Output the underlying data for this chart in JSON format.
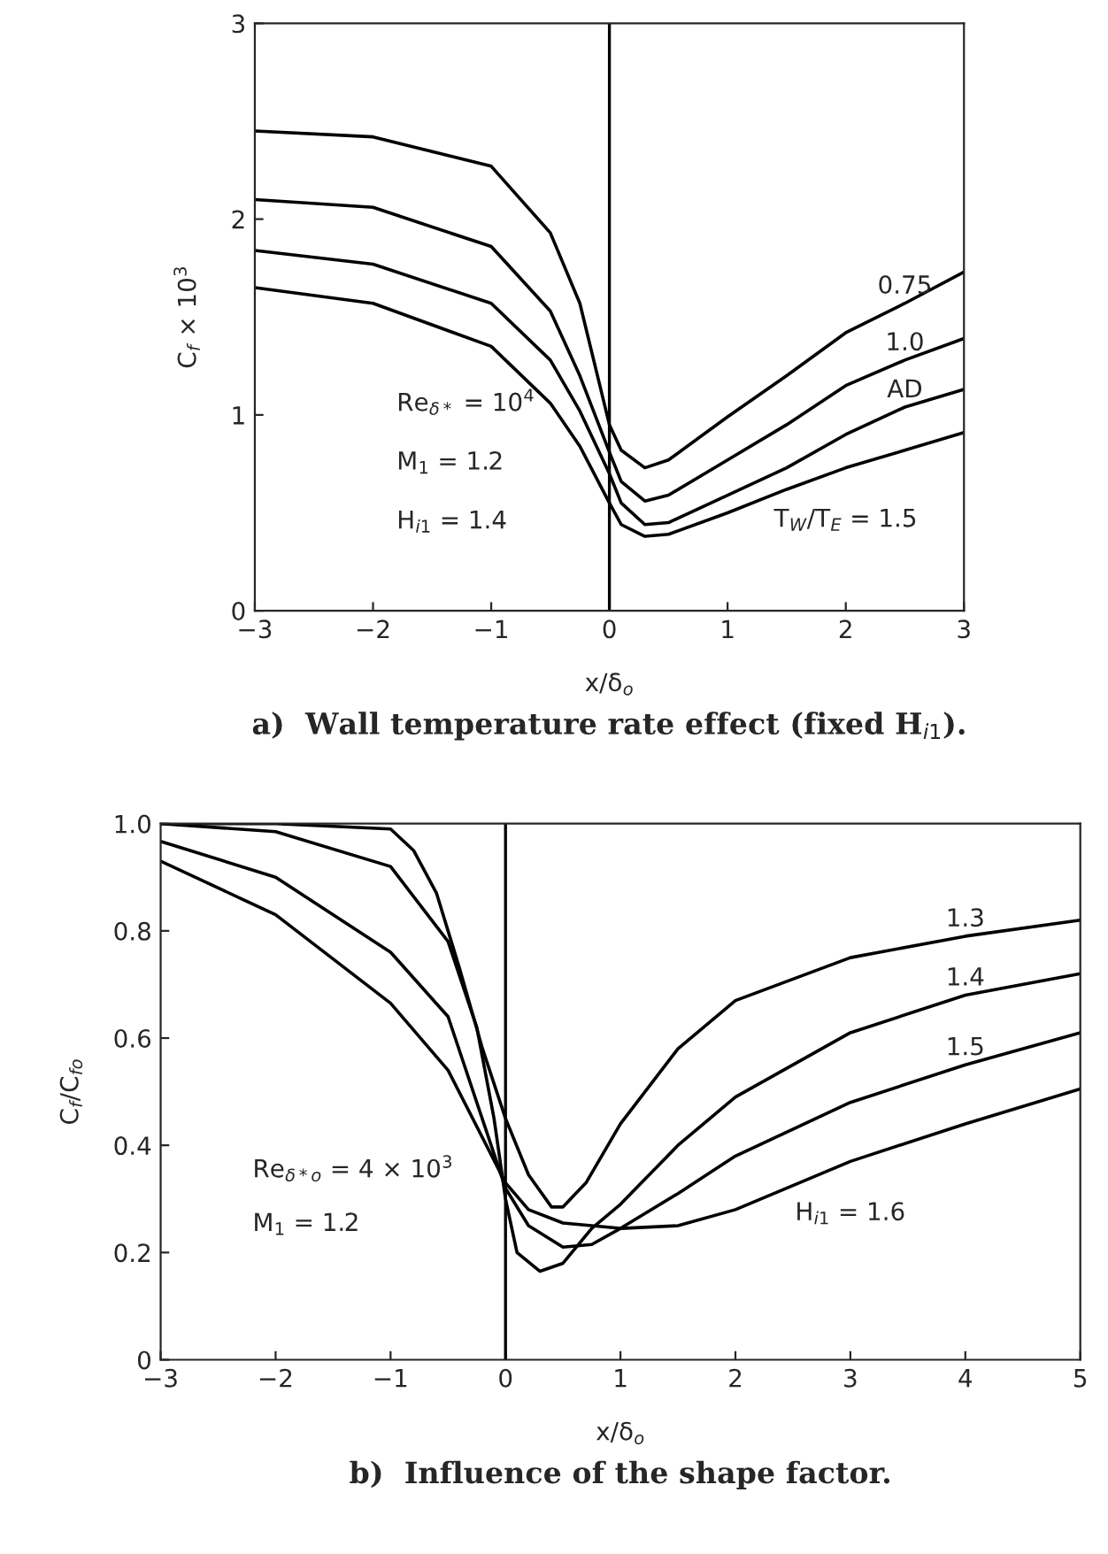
{
  "chart_data": [
    {
      "type": "line",
      "title": "a)  Wall temperature rate effect (fixed H$_{i1}$).",
      "xlabel": "x/δ$_{o}$",
      "ylabel": "C$_{f}$ × 10$^{3}$",
      "xlim": [
        -3,
        3
      ],
      "ylim": [
        0,
        3
      ],
      "xticks": [
        {
          "value": -3,
          "label": "−3"
        },
        {
          "value": -2,
          "label": "−2"
        },
        {
          "value": -1,
          "label": "−1"
        },
        0,
        1,
        2,
        3
      ],
      "yticks": [
        0,
        1,
        2,
        3
      ],
      "x": [
        -3,
        -2,
        -1,
        -0.5,
        -0.25,
        0,
        0.1,
        0.3,
        0.5,
        1,
        1.5,
        2,
        2.5,
        3
      ],
      "series": [
        {
          "name": "0.75",
          "color": "#000000",
          "values": [
            2.45,
            2.42,
            2.27,
            1.93,
            1.57,
            0.95,
            0.82,
            0.73,
            0.77,
            0.99,
            1.2,
            1.42,
            1.57,
            1.73
          ]
        },
        {
          "name": "1.0",
          "color": "#000000",
          "values": [
            2.1,
            2.06,
            1.86,
            1.53,
            1.2,
            0.81,
            0.66,
            0.56,
            0.59,
            0.77,
            0.95,
            1.15,
            1.28,
            1.39
          ]
        },
        {
          "name": "AD",
          "color": "#000000",
          "values": [
            1.84,
            1.77,
            1.57,
            1.28,
            1.02,
            0.7,
            0.55,
            0.44,
            0.45,
            0.59,
            0.73,
            0.9,
            1.04,
            1.13
          ]
        },
        {
          "name": "T$_{W}$/T$_{E}$ = 1.5",
          "color": "#000000",
          "values": [
            1.65,
            1.57,
            1.35,
            1.06,
            0.84,
            0.55,
            0.44,
            0.38,
            0.39,
            0.5,
            0.62,
            0.73,
            0.82,
            0.91
          ]
        }
      ],
      "ref_lines": [
        {
          "axis": "x",
          "value": 0,
          "color": "#000000"
        }
      ],
      "annotations": [
        "Re$_{δ*}$ = 10$^{4}$",
        "M$_{1}$ = 1.2",
        "H$_{i1}$ = 1.4"
      ]
    },
    {
      "type": "line",
      "title": "b)  Influence of the shape factor.",
      "xlabel": "x/δ$_{o}$",
      "ylabel": "C$_{f}$/C$_{fo}$",
      "xlim": [
        -3,
        5
      ],
      "ylim": [
        0,
        1.0
      ],
      "xticks": [
        {
          "value": -3,
          "label": "−3"
        },
        {
          "value": -2,
          "label": "−2"
        },
        {
          "value": -1,
          "label": "−1"
        },
        0,
        1,
        2,
        3,
        4,
        5
      ],
      "yticks": [
        0,
        {
          "value": 0.2,
          "label": "0.2"
        },
        {
          "value": 0.4,
          "label": "0.4"
        },
        {
          "value": 0.6,
          "label": "0.6"
        },
        {
          "value": 0.8,
          "label": "0.8"
        },
        {
          "value": 1.0,
          "label": "1.0"
        }
      ],
      "series": [
        {
          "name": "1.3",
          "color": "#000000",
          "x": [
            -3,
            -2,
            -1,
            -0.8,
            -0.6,
            -0.4,
            -0.2,
            0,
            0.2,
            0.4,
            0.5,
            0.7,
            1,
            1.5,
            2,
            3,
            4,
            5
          ],
          "values": [
            1.0,
            1.0,
            0.99,
            0.95,
            0.87,
            0.73,
            0.58,
            0.45,
            0.345,
            0.285,
            0.285,
            0.33,
            0.44,
            0.58,
            0.67,
            0.75,
            0.79,
            0.82
          ]
        },
        {
          "name": "1.4",
          "color": "#000000",
          "x": [
            -3,
            -2,
            -1,
            -0.5,
            -0.25,
            -0.1,
            0,
            0.1,
            0.3,
            0.5,
            0.75,
            1,
            1.5,
            2,
            3,
            4,
            5
          ],
          "values": [
            1.0,
            0.985,
            0.92,
            0.78,
            0.62,
            0.45,
            0.3,
            0.2,
            0.165,
            0.18,
            0.245,
            0.29,
            0.4,
            0.49,
            0.61,
            0.68,
            0.72
          ]
        },
        {
          "name": "1.5",
          "color": "#000000",
          "x": [
            -3,
            -2,
            -1,
            -0.5,
            0,
            0.2,
            0.5,
            0.75,
            1,
            1.5,
            2,
            3,
            4,
            5
          ],
          "values": [
            0.967,
            0.9,
            0.76,
            0.64,
            0.32,
            0.25,
            0.21,
            0.215,
            0.245,
            0.31,
            0.38,
            0.48,
            0.55,
            0.61
          ]
        },
        {
          "name": "H$_{i1}$ = 1.6",
          "color": "#000000",
          "x": [
            -3,
            -2,
            -1,
            -0.5,
            0,
            0.2,
            0.5,
            1,
            1.5,
            2,
            3,
            4,
            5
          ],
          "values": [
            0.93,
            0.83,
            0.665,
            0.54,
            0.33,
            0.28,
            0.255,
            0.245,
            0.25,
            0.28,
            0.37,
            0.44,
            0.505
          ]
        }
      ],
      "ref_lines": [
        {
          "axis": "x",
          "value": 0,
          "color": "#000000"
        }
      ],
      "annotations": [
        "Re$_{δ*o}$ = 4 × 10$^{3}$",
        "M$_{1}$ = 1.2"
      ]
    }
  ]
}
